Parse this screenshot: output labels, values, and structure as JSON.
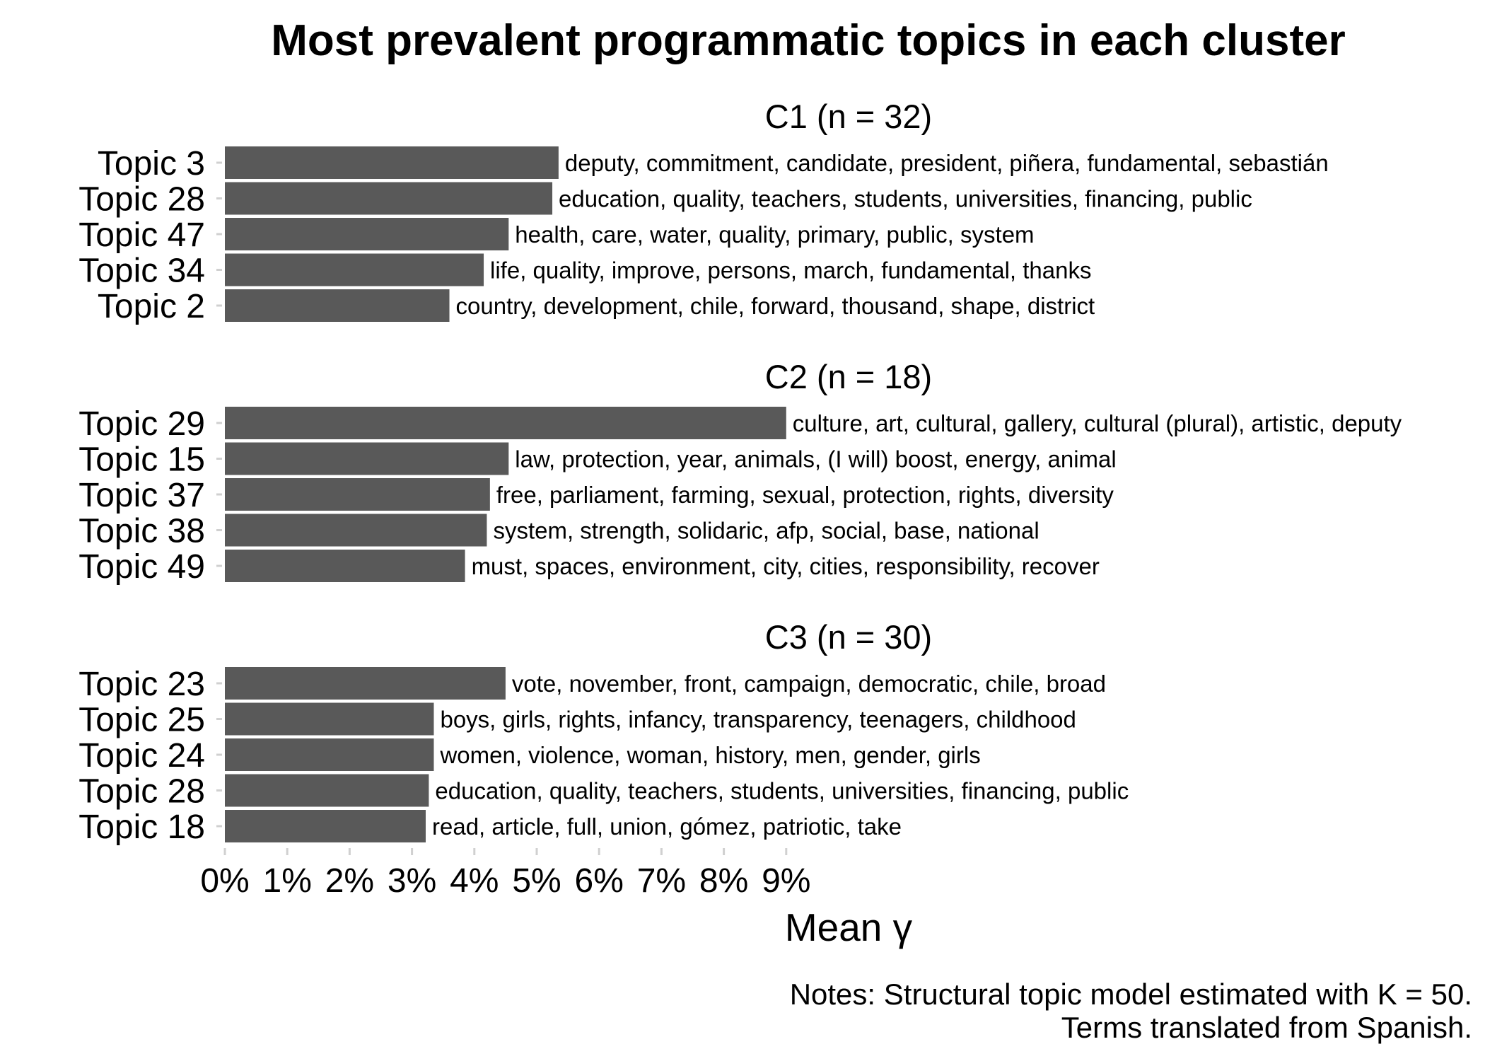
{
  "chart_data": {
    "type": "bar",
    "orientation": "horizontal",
    "title": "Most prevalent programmatic topics in each cluster",
    "xlabel": "Mean γ",
    "xlim": [
      0,
      9
    ],
    "x_ticks": [
      "0%",
      "1%",
      "2%",
      "3%",
      "4%",
      "5%",
      "6%",
      "7%",
      "8%",
      "9%"
    ],
    "grid": false,
    "bar_color": "#595959",
    "panels": [
      {
        "label": "C1 (n = 32)",
        "bars": [
          {
            "topic": "Topic 3",
            "value": 5.35,
            "terms": "deputy, commitment, candidate, president, piñera, fundamental, sebastián"
          },
          {
            "topic": "Topic 28",
            "value": 5.25,
            "terms": "education, quality, teachers, students, universities, financing, public"
          },
          {
            "topic": "Topic 47",
            "value": 4.55,
            "terms": "health, care, water, quality, primary, public, system"
          },
          {
            "topic": "Topic 34",
            "value": 4.15,
            "terms": "life, quality, improve, persons, march, fundamental, thanks"
          },
          {
            "topic": "Topic 2",
            "value": 3.6,
            "terms": "country, development, chile, forward, thousand, shape, district"
          }
        ]
      },
      {
        "label": "C2 (n = 18)",
        "bars": [
          {
            "topic": "Topic 29",
            "value": 9.0,
            "terms": "culture, art, cultural, gallery, cultural (plural), artistic, deputy"
          },
          {
            "topic": "Topic 15",
            "value": 4.55,
            "terms": "law, protection, year, animals, (I will) boost, energy, animal"
          },
          {
            "topic": "Topic 37",
            "value": 4.25,
            "terms": "free, parliament, farming, sexual, protection, rights, diversity"
          },
          {
            "topic": "Topic 38",
            "value": 4.2,
            "terms": "system, strength, solidaric, afp, social, base, national"
          },
          {
            "topic": "Topic 49",
            "value": 3.85,
            "terms": "must, spaces, environment, city, cities, responsibility, recover"
          }
        ]
      },
      {
        "label": "C3 (n = 30)",
        "bars": [
          {
            "topic": "Topic 23",
            "value": 4.5,
            "terms": "vote, november, front, campaign, democratic, chile, broad"
          },
          {
            "topic": "Topic 25",
            "value": 3.35,
            "terms": "boys, girls, rights, infancy, transparency, teenagers, childhood"
          },
          {
            "topic": "Topic 24",
            "value": 3.35,
            "terms": "women, violence, woman, history, men, gender, girls"
          },
          {
            "topic": "Topic 28",
            "value": 3.27,
            "terms": "education, quality, teachers, students, universities, financing, public"
          },
          {
            "topic": "Topic 18",
            "value": 3.22,
            "terms": "read, article, full, union, gómez, patriotic, take"
          }
        ]
      }
    ],
    "notes": [
      "Notes: Structural topic model estimated with K = 50.",
      "Terms translated from Spanish."
    ]
  }
}
